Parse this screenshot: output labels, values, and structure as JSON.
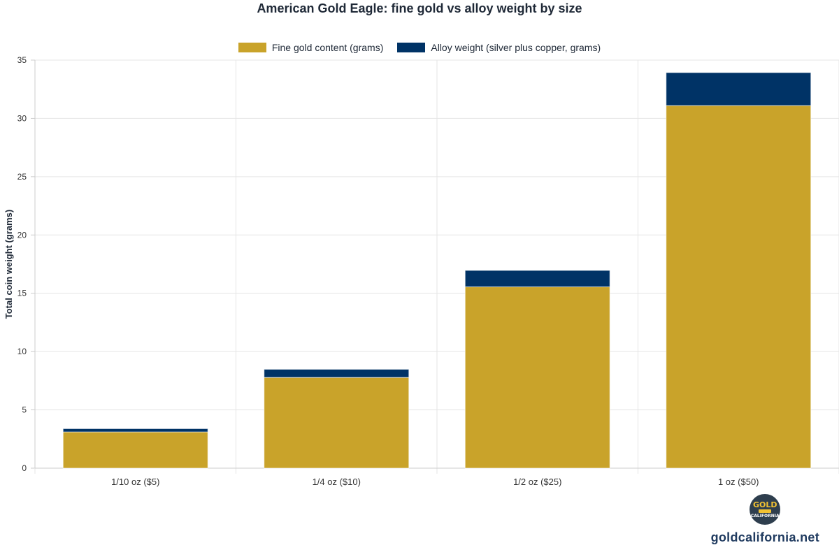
{
  "chart_data": {
    "type": "bar",
    "stacked": true,
    "title": "American Gold Eagle: fine gold vs alloy weight by size",
    "xlabel": "",
    "ylabel": "Total coin weight (grams)",
    "categories": [
      "1/10 oz ($5)",
      "1/4 oz ($10)",
      "1/2 oz ($25)",
      "1 oz ($50)"
    ],
    "series": [
      {
        "name": "Fine gold content (grams)",
        "color": "#c9a32a",
        "values": [
          3.11,
          7.78,
          15.55,
          31.1
        ]
      },
      {
        "name": "Alloy weight (silver plus copper, grams)",
        "color": "#003366",
        "values": [
          0.28,
          0.7,
          1.41,
          2.83
        ]
      }
    ],
    "ylim": [
      0,
      35
    ],
    "yticks": [
      0,
      5,
      10,
      15,
      20,
      25,
      30,
      35
    ],
    "grid": true,
    "legend_position": "top-center"
  },
  "brand": {
    "logo_word": "GOLD",
    "logo_sub": "CALIFORNIA",
    "url": "goldcalifornia.net"
  }
}
